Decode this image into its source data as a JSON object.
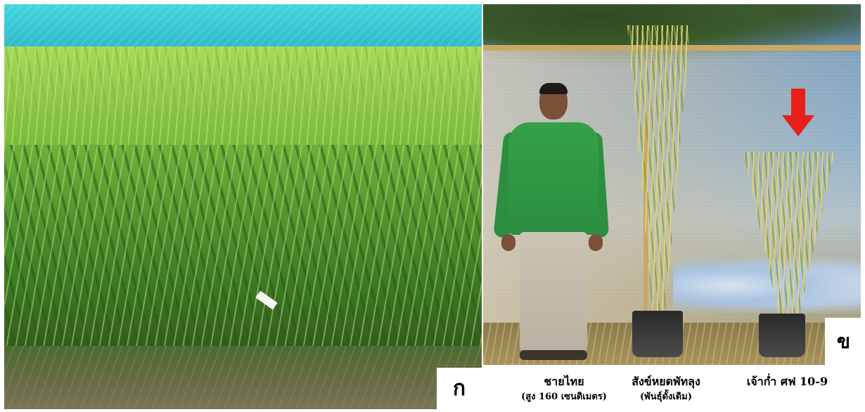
{
  "panels": {
    "a": {
      "letter": "ก"
    },
    "b": {
      "letter": "ข"
    }
  },
  "captions": [
    {
      "line1": "ชายไทย",
      "line2": "(สูง 160 เซนติเมตร)"
    },
    {
      "line1": "สังข์หยดพัทลุง",
      "line2": "(พันธุ์ดั้งเดิม)"
    },
    {
      "line1": "เจ้าก่ำ ศฟ 10-9",
      "line2": ""
    }
  ],
  "colors": {
    "arrow": "#e8201c",
    "shirt": "#2c8e3f",
    "net": "#2ab2c6"
  }
}
